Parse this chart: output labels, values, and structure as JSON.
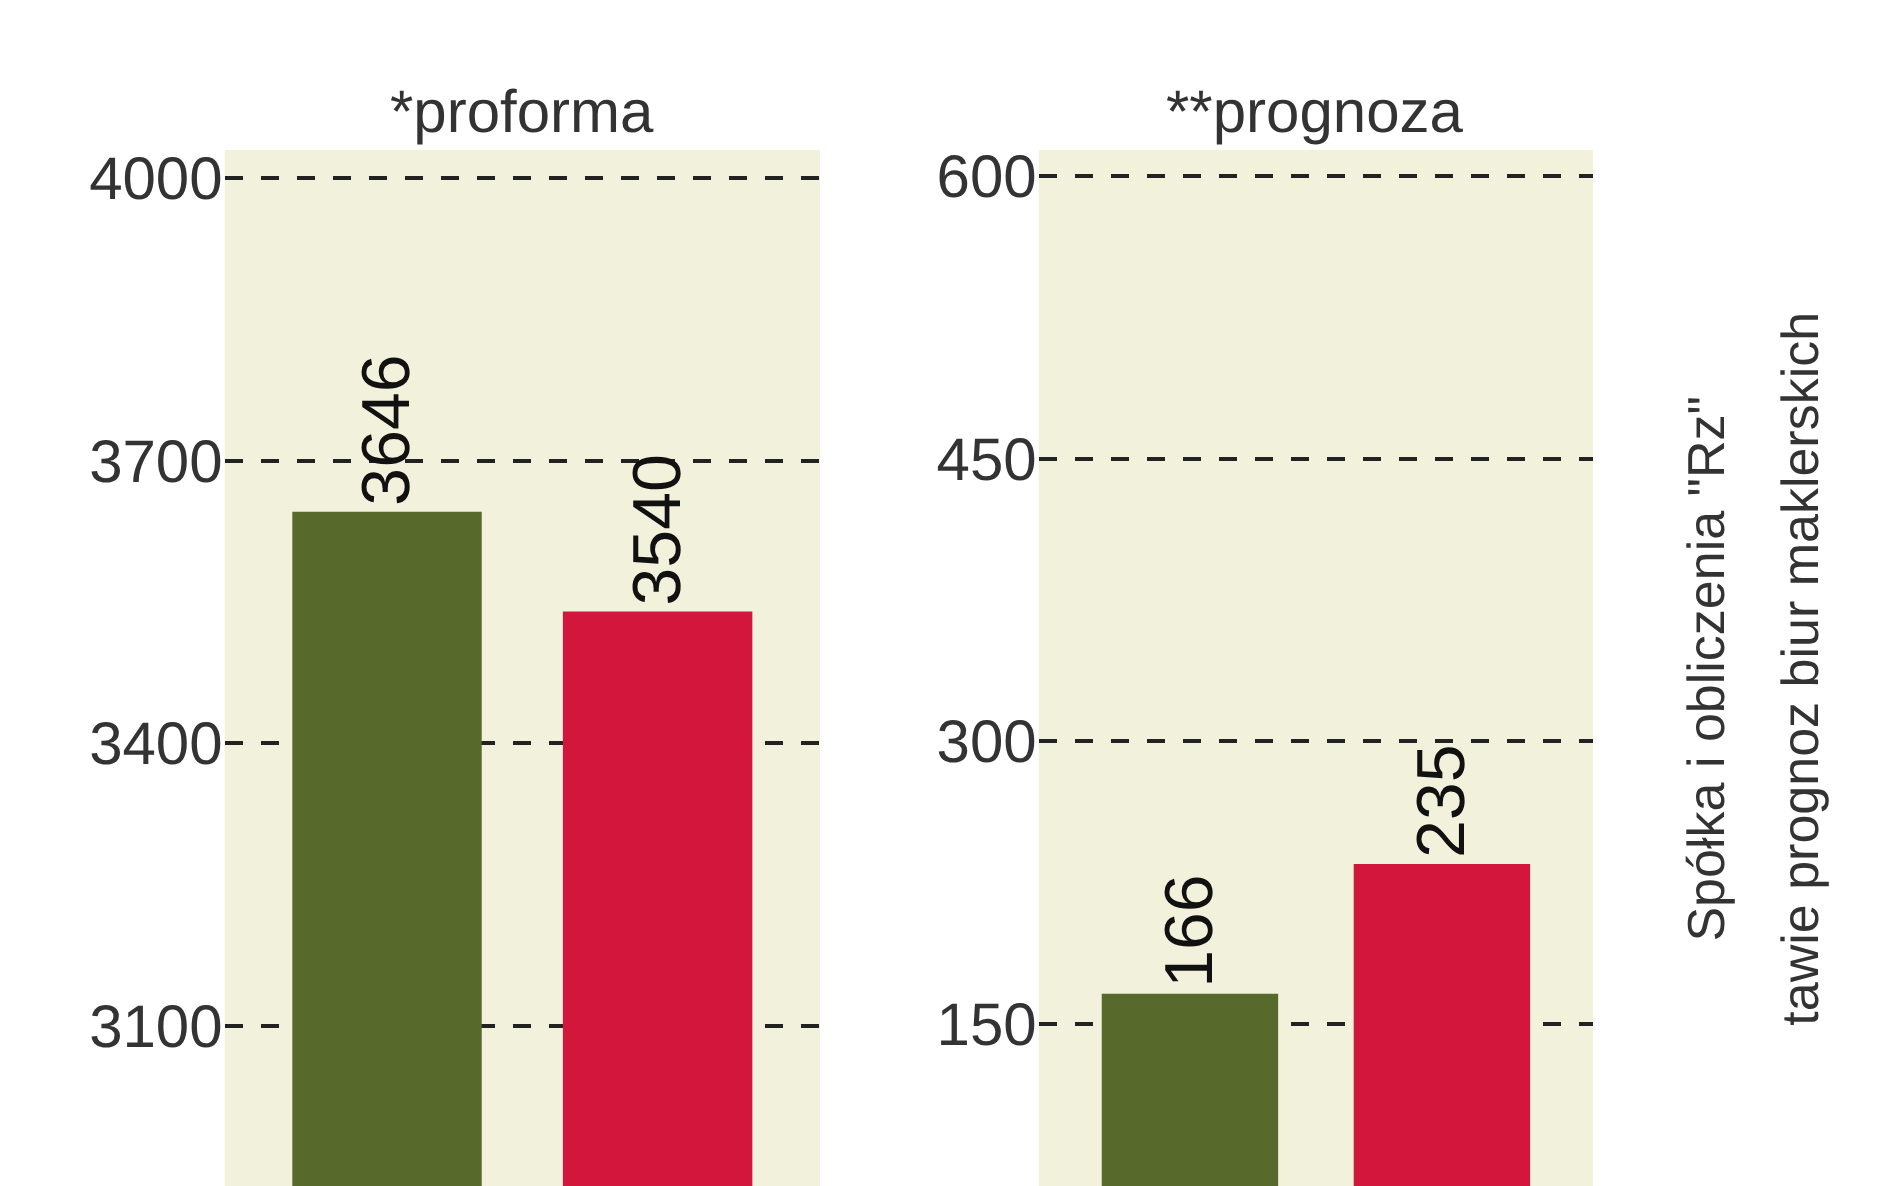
{
  "chart_data": [
    {
      "type": "bar",
      "title": "*proforma",
      "categories": [
        null,
        null
      ],
      "series": [
        {
          "values": [
            3646,
            3540
          ],
          "colors": [
            "#58692c",
            "#d2163c"
          ]
        }
      ],
      "ylim": [
        2930,
        4030
      ],
      "yticks": [
        3100,
        3400,
        3700,
        4000
      ],
      "grid": "y",
      "line_style": "dashed",
      "data_labels": true,
      "legend": false
    },
    {
      "type": "bar",
      "title": "**prognoza",
      "categories": [
        null,
        null
      ],
      "series": [
        {
          "values": [
            166,
            235
          ],
          "colors": [
            "#58692c",
            "#d2163c"
          ]
        }
      ],
      "ylim": [
        64,
        614
      ],
      "yticks": [
        150,
        300,
        450,
        600
      ],
      "grid": "y",
      "line_style": "dashed",
      "data_labels": true,
      "legend": false,
      "annotations": [
        "Spółka i obliczenia \"Rz\"",
        "tawie prognoz biur maklerskich"
      ]
    }
  ]
}
